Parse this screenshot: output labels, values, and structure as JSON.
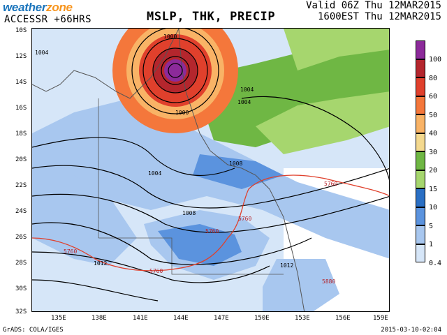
{
  "header": {
    "brand_part1": "weather",
    "brand_part2": "zone",
    "model": "ACCESSR +66HRS",
    "title": "MSLP, THK, PRECIP",
    "valid_line1": "Valid 06Z Thu 12MAR2015",
    "valid_line2": "1600EST Thu 12MAR2015"
  },
  "footer": {
    "left": "GrADS: COLA/IGES",
    "right": "2015-03-10-02:04"
  },
  "lat_labels": [
    "10S",
    "12S",
    "14S",
    "16S",
    "18S",
    "20S",
    "22S",
    "24S",
    "26S",
    "28S",
    "30S",
    "32S"
  ],
  "lon_labels": [
    "135E",
    "138E",
    "141E",
    "144E",
    "147E",
    "150E",
    "153E",
    "156E",
    "159E"
  ],
  "colorbar": {
    "levels": [
      "100",
      "80",
      "60",
      "50",
      "40",
      "30",
      "20",
      "15",
      "10",
      "5",
      "1",
      "0.4"
    ],
    "colors": [
      "#8c2a9a",
      "#b4262d",
      "#e0402c",
      "#f4773b",
      "#f9b366",
      "#f4d98f",
      "#6fb744",
      "#a6d66e",
      "#2a6fc4",
      "#5b93de",
      "#a8c7ef",
      "#d6e6f8"
    ]
  },
  "map_labels": {
    "isobars": [
      "1000",
      "1004",
      "1004",
      "1004",
      "1000",
      "1004",
      "1008",
      "1008",
      "1012",
      "1012"
    ],
    "thickness": [
      "5760",
      "5760",
      "5760",
      "5760",
      "5760",
      "5880"
    ]
  }
}
